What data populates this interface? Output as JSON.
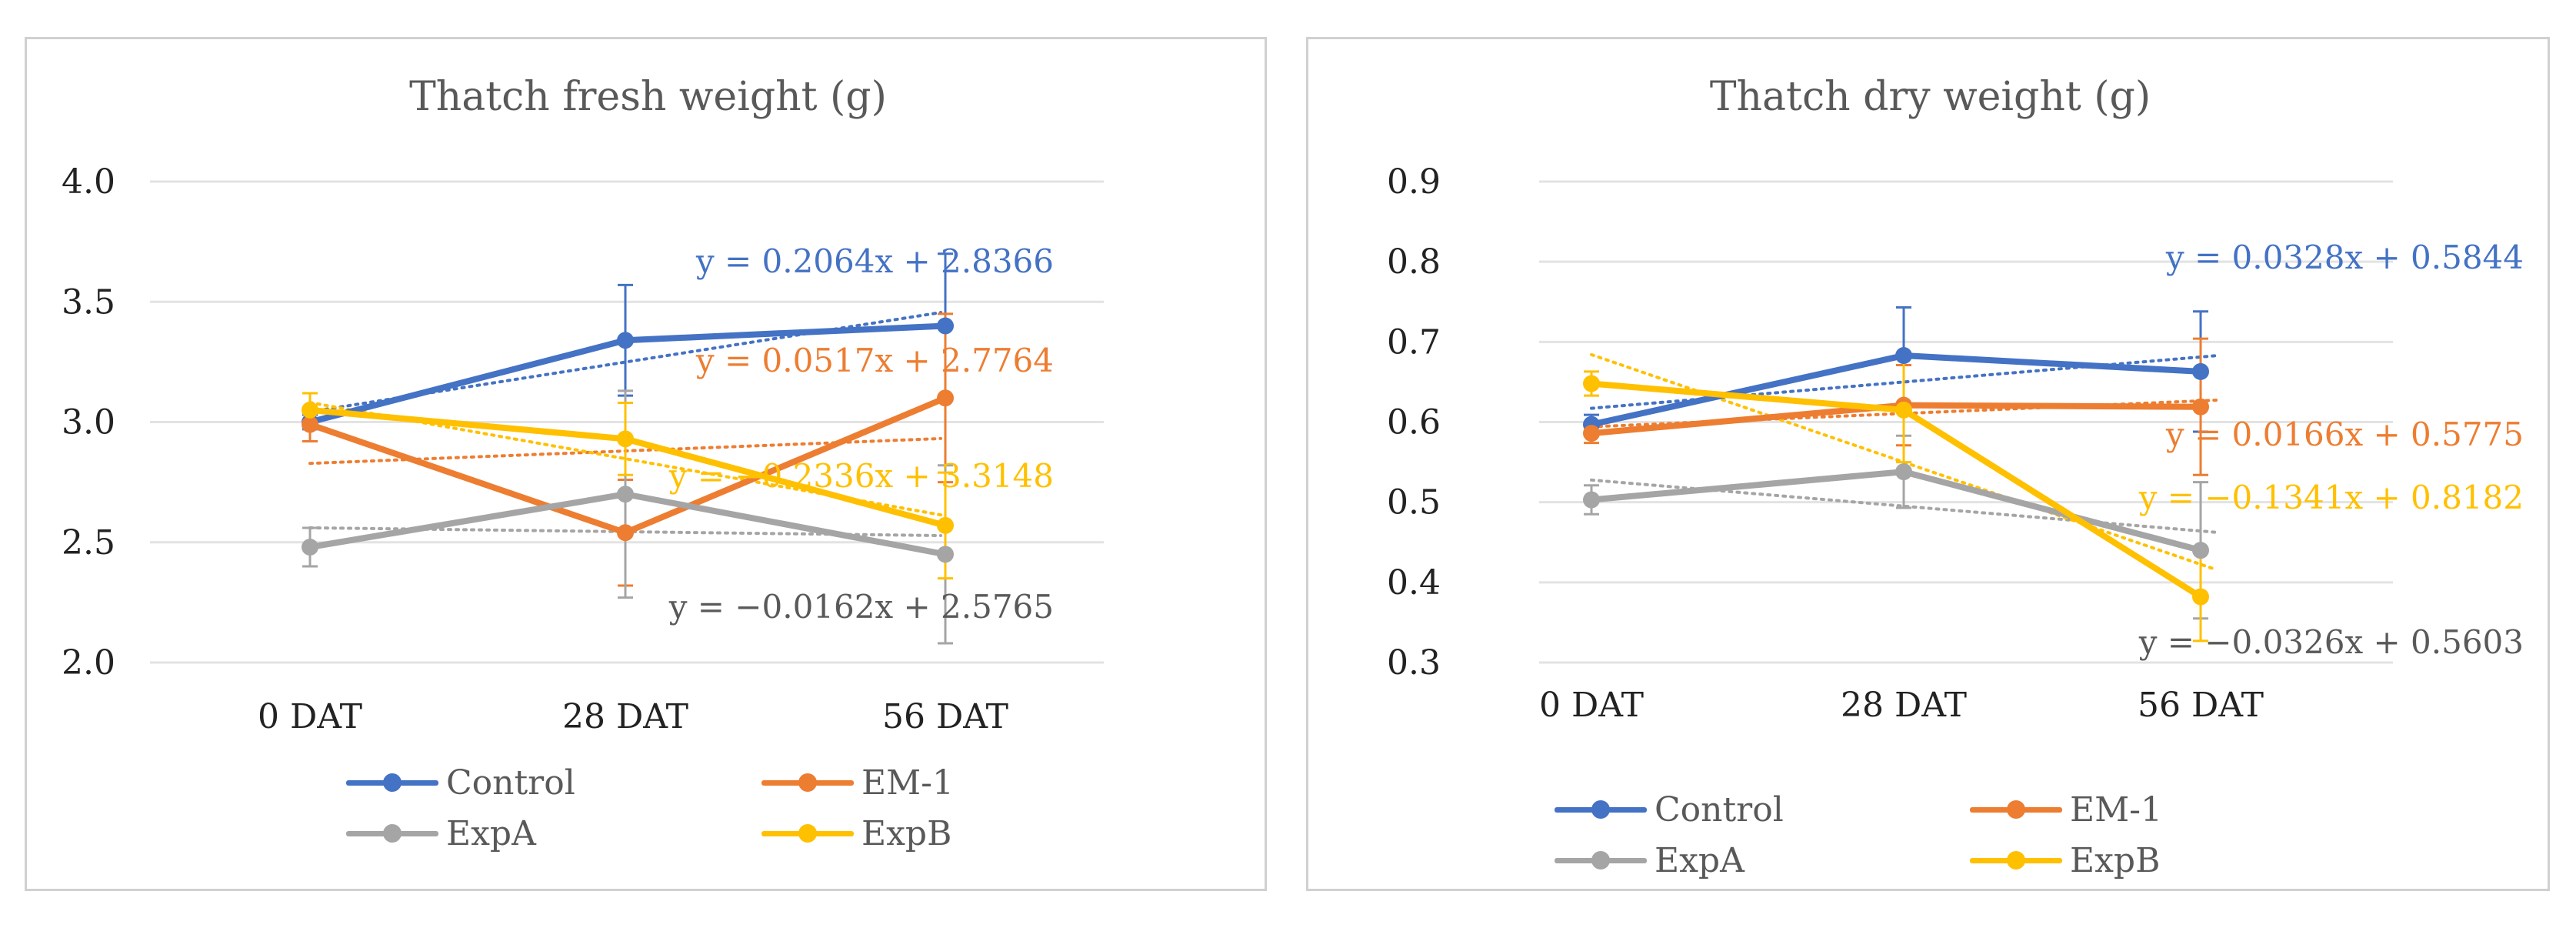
{
  "chart_data": [
    {
      "type": "line",
      "title": "Thatch fresh weight (g)",
      "categories": [
        "0 DAT",
        "28 DAT",
        "56 DAT"
      ],
      "y_ticks": [
        "2.0",
        "2.5",
        "3.0",
        "3.5",
        "4.0"
      ],
      "ylim": [
        2.0,
        4.0
      ],
      "grid": true,
      "legend_position": "bottom",
      "series": [
        {
          "name": "Control",
          "color": "#4472C4",
          "values": [
            3.0,
            3.34,
            3.4
          ],
          "error": [
            0.03,
            0.23,
            0.3
          ],
          "trend_slope": 0.2064,
          "trend_intercept": 2.8366,
          "trendline_label": "y = 0.2064x + 2.8366"
        },
        {
          "name": "EM-1",
          "color": "#ED7D31",
          "values": [
            2.99,
            2.54,
            3.1
          ],
          "error": [
            0.07,
            0.22,
            0.35
          ],
          "trend_slope": 0.0517,
          "trend_intercept": 2.7764,
          "trendline_label": "y = 0.0517x + 2.7764"
        },
        {
          "name": "ExpA",
          "color": "#A5A5A5",
          "values": [
            2.48,
            2.7,
            2.45
          ],
          "error": [
            0.08,
            0.43,
            0.37
          ],
          "trend_slope": -0.0162,
          "trend_intercept": 2.5765,
          "trendline_label": "y = −0.0162x + 2.5765"
        },
        {
          "name": "ExpB",
          "color": "#FFC000",
          "values": [
            3.05,
            2.93,
            2.57
          ],
          "error": [
            0.07,
            0.15,
            0.22
          ],
          "trend_slope": -0.2336,
          "trend_intercept": 3.3148,
          "trendline_label": "y = −0.2336x + 3.3148"
        }
      ]
    },
    {
      "type": "line",
      "title": "Thatch dry weight (g)",
      "categories": [
        "0 DAT",
        "28 DAT",
        "56 DAT"
      ],
      "y_ticks": [
        "0.3",
        "0.4",
        "0.5",
        "0.6",
        "0.7",
        "0.8",
        "0.9"
      ],
      "ylim": [
        0.3,
        0.9
      ],
      "grid": true,
      "legend_position": "bottom",
      "series": [
        {
          "name": "Control",
          "color": "#4472C4",
          "values": [
            0.597,
            0.683,
            0.663
          ],
          "error": [
            0.012,
            0.06,
            0.075
          ],
          "trend_slope": 0.0328,
          "trend_intercept": 0.5844,
          "trendline_label": "y = 0.0328x + 0.5844"
        },
        {
          "name": "EM-1",
          "color": "#ED7D31",
          "values": [
            0.586,
            0.621,
            0.619
          ],
          "error": [
            0.012,
            0.05,
            0.085
          ],
          "trend_slope": 0.0166,
          "trend_intercept": 0.5775,
          "trendline_label": "y = 0.0166x + 0.5775"
        },
        {
          "name": "ExpA",
          "color": "#A5A5A5",
          "values": [
            0.503,
            0.538,
            0.44
          ],
          "error": [
            0.018,
            0.045,
            0.085
          ],
          "trend_slope": -0.0326,
          "trend_intercept": 0.5603,
          "trendline_label": "y = −0.0326x + 0.5603"
        },
        {
          "name": "ExpB",
          "color": "#FFC000",
          "values": [
            0.648,
            0.615,
            0.382
          ],
          "error": [
            0.015,
            0.065,
            0.055
          ],
          "trend_slope": -0.1341,
          "trend_intercept": 0.8182,
          "trendline_label": "y = −0.1341x + 0.8182"
        }
      ]
    }
  ]
}
